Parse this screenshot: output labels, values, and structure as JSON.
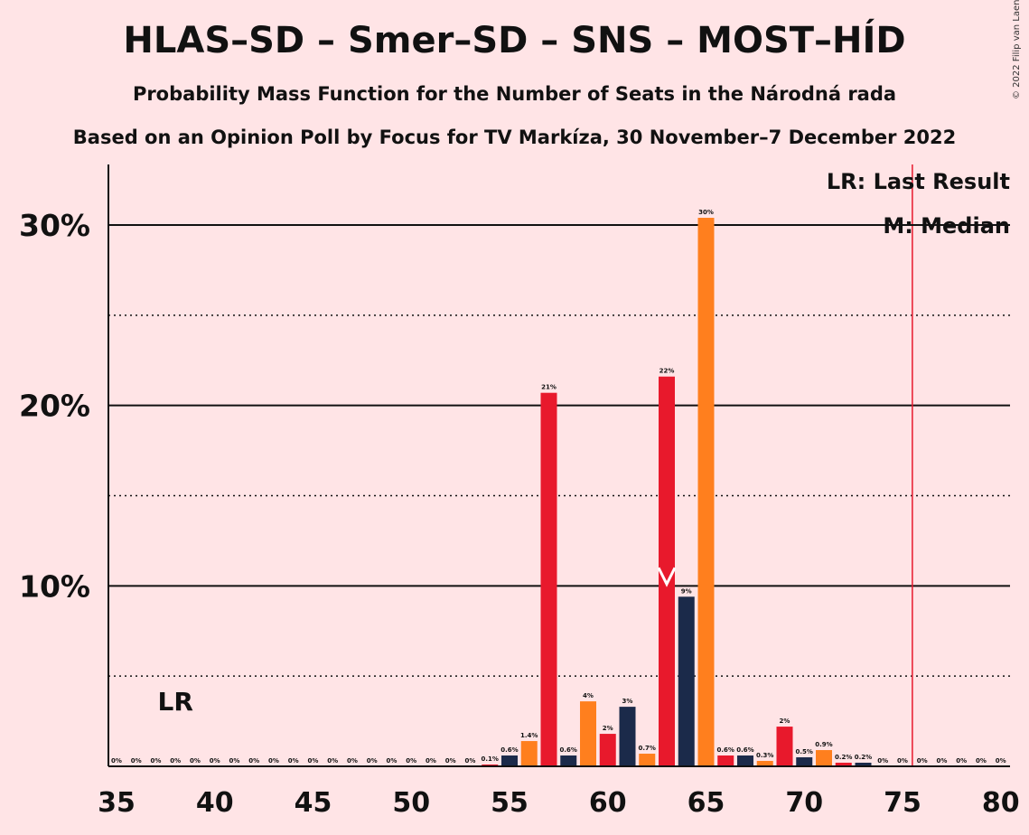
{
  "title": "HLAS–SD – Smer–SD – SNS – MOST–HÍD",
  "subtitle": "Probability Mass Function for the Number of Seats in the Národná rada",
  "subtitle2": "Based on an Opinion Poll by Focus for TV Markíza, 30 November–7 December 2022",
  "copyright": "© 2022 Filip van Laenen",
  "legend": {
    "last_result": "LR: Last Result",
    "median": "M: Median",
    "lr_marker": "LR",
    "median_marker": "M"
  },
  "colors": {
    "background": "#ffe4e6",
    "red": "#e8192c",
    "orange": "#ff7f1e",
    "navy": "#1b2a4a",
    "last_result_line": "#e8192c"
  },
  "chart_data": {
    "type": "bar",
    "x": [
      35,
      36,
      37,
      38,
      39,
      40,
      41,
      42,
      43,
      44,
      45,
      46,
      47,
      48,
      49,
      50,
      51,
      52,
      53,
      54,
      55,
      56,
      57,
      58,
      59,
      60,
      61,
      62,
      63,
      64,
      65,
      66,
      67,
      68,
      69,
      70,
      71,
      72,
      73,
      74,
      75,
      76,
      77,
      78,
      79,
      80
    ],
    "values": [
      0,
      0,
      0,
      0,
      0,
      0,
      0,
      0,
      0,
      0,
      0,
      0,
      0,
      0,
      0,
      0,
      0,
      0,
      0,
      0.1,
      0.6,
      1.4,
      20.7,
      0.6,
      3.6,
      1.8,
      3.3,
      0.7,
      21.6,
      9.4,
      30.4,
      0.6,
      0.6,
      0.3,
      2.2,
      0.5,
      0.9,
      0.2,
      0.2,
      0,
      0,
      0,
      0,
      0,
      0,
      0
    ],
    "labels": [
      "0%",
      "0%",
      "0%",
      "0%",
      "0%",
      "0%",
      "0%",
      "0%",
      "0%",
      "0%",
      "0%",
      "0%",
      "0%",
      "0%",
      "0%",
      "0%",
      "0%",
      "0%",
      "0%",
      "0.1%",
      "0.6%",
      "1.4%",
      "21%",
      "0.6%",
      "4%",
      "2%",
      "3%",
      "0.7%",
      "22%",
      "9%",
      "30%",
      "0.6%",
      "0.6%",
      "0.3%",
      "2%",
      "0.5%",
      "0.9%",
      "0.2%",
      "0.2%",
      "0%",
      "0%",
      "0%",
      "0%",
      "0%",
      "0%",
      "0%"
    ],
    "xticks": [
      35,
      40,
      45,
      50,
      55,
      60,
      65,
      70,
      75,
      80
    ],
    "yticks": [
      {
        "value": 10,
        "label": "10%"
      },
      {
        "value": 20,
        "label": "20%"
      },
      {
        "value": 30,
        "label": "30%"
      }
    ],
    "ygrid_dotted": [
      5,
      15,
      25
    ],
    "ylim": [
      0,
      33
    ],
    "xlim": [
      35,
      80
    ],
    "last_result": 38,
    "median": 63,
    "majority_line": 76
  }
}
